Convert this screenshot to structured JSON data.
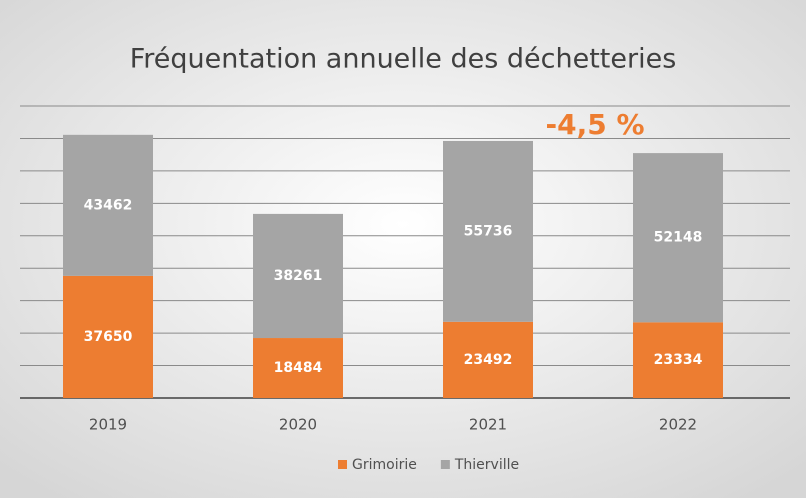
{
  "chart_data": {
    "type": "bar",
    "stacked": true,
    "title": "Fréquentation annuelle des déchetteries",
    "annotation": "-4,5 %",
    "categories": [
      "2019",
      "2020",
      "2021",
      "2022"
    ],
    "series": [
      {
        "name": "Grimoirie",
        "color": "#ed7d31",
        "values": [
          37650,
          18484,
          23492,
          23334
        ]
      },
      {
        "name": "Thierville",
        "color": "#a5a5a5",
        "values": [
          43462,
          38261,
          55736,
          52148
        ]
      }
    ],
    "ylim": [
      0,
      90000
    ],
    "yticks": [
      0,
      10000,
      20000,
      30000,
      40000,
      50000,
      60000,
      70000,
      80000,
      90000
    ],
    "grid": true,
    "legend": "bottom"
  }
}
